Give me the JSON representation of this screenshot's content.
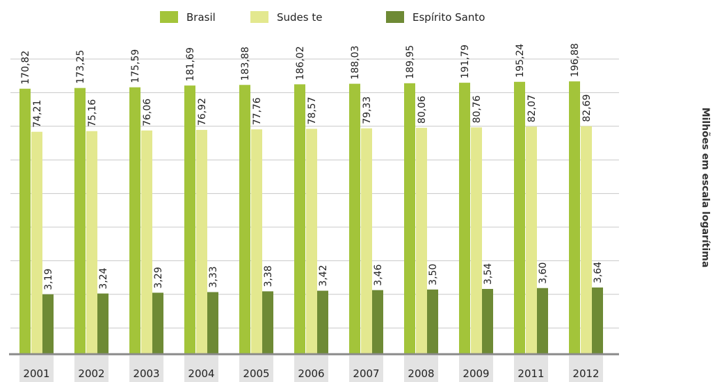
{
  "chart_data": {
    "type": "bar",
    "title": "",
    "xlabel": "",
    "ylabel": "Milhões em escala logarítima",
    "yscale": "log",
    "ylim": [
      1,
      200
    ],
    "grid": true,
    "legend": "top",
    "categories": [
      "2001",
      "2002",
      "2003",
      "2004",
      "2005",
      "2006",
      "2007",
      "2008",
      "2009",
      "2011",
      "2012"
    ],
    "series": [
      {
        "name": "Brasil",
        "color": "#a3c43a",
        "values": [
          170.82,
          173.25,
          175.59,
          181.69,
          183.88,
          186.02,
          188.03,
          189.95,
          191.79,
          195.24,
          196.88
        ],
        "labels": [
          "170,82",
          "173,25",
          "175,59",
          "181,69",
          "183,88",
          "186,02",
          "188,03",
          "189,95",
          "191,79",
          "195,24",
          "196,88"
        ]
      },
      {
        "name": "Sudes te",
        "color": "#e3e88f",
        "values": [
          74.21,
          75.16,
          76.06,
          76.92,
          77.76,
          78.57,
          79.33,
          80.06,
          80.76,
          82.07,
          82.69
        ],
        "labels": [
          "74,21",
          "75,16",
          "76,06",
          "76,92",
          "77,76",
          "78,57",
          "79,33",
          "80,06",
          "80,76",
          "82,07",
          "82,69"
        ]
      },
      {
        "name": "Espírito Santo",
        "color": "#6e8a35",
        "values": [
          3.19,
          3.24,
          3.29,
          3.33,
          3.38,
          3.42,
          3.46,
          3.5,
          3.54,
          3.6,
          3.64
        ],
        "labels": [
          "3,19",
          "3,24",
          "3,29",
          "3,33",
          "3,38",
          "3,42",
          "3,46",
          "3,50",
          "3,54",
          "3,60",
          "3,64"
        ]
      }
    ]
  }
}
